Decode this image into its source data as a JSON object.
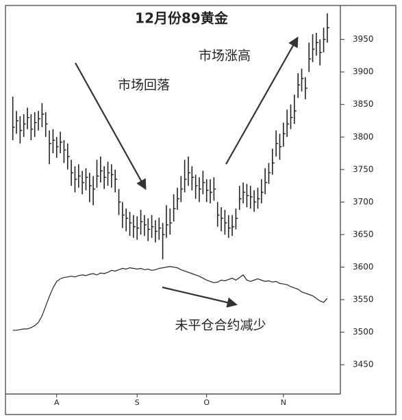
{
  "chart_data": {
    "type": "ohlc",
    "title": "12月份89黄金",
    "annotations": [
      "市场回落",
      "市场涨高",
      "未平仓合约减少"
    ],
    "categories": [
      null,
      null,
      null,
      null,
      null,
      null,
      null,
      null,
      null,
      null,
      null,
      null,
      "A",
      null,
      null,
      null,
      null,
      null,
      null,
      null,
      null,
      null,
      null,
      null,
      null,
      null,
      null,
      null,
      null,
      null,
      null,
      null,
      null,
      null,
      "S",
      null,
      null,
      null,
      null,
      null,
      null,
      null,
      null,
      null,
      null,
      null,
      null,
      null,
      null,
      null,
      null,
      null,
      null,
      "O",
      null,
      null,
      null,
      null,
      null,
      null,
      null,
      null,
      null,
      null,
      null,
      null,
      null,
      null,
      null,
      null,
      null,
      null,
      null,
      null,
      "N",
      null,
      null,
      null,
      null,
      null,
      null,
      null,
      null,
      null,
      null,
      null,
      null
    ],
    "high": [
      3862,
      3840,
      3832,
      3835,
      3845,
      3835,
      3838,
      3840,
      3852,
      3838,
      3810,
      3812,
      3800,
      3808,
      3795,
      3790,
      3765,
      3755,
      3758,
      3748,
      3752,
      3745,
      3740,
      3765,
      3770,
      3755,
      3762,
      3758,
      3750,
      3720,
      3700,
      3690,
      3685,
      3680,
      3678,
      3688,
      3680,
      3675,
      3680,
      3672,
      3676,
      3668,
      3695,
      3690,
      3712,
      3722,
      3740,
      3765,
      3770,
      3755,
      3742,
      3738,
      3748,
      3735,
      3735,
      3738,
      3700,
      3692,
      3688,
      3680,
      3680,
      3690,
      3725,
      3730,
      3728,
      3725,
      3718,
      3722,
      3735,
      3752,
      3760,
      3782,
      3810,
      3805,
      3822,
      3842,
      3850,
      3865,
      3898,
      3905,
      3892,
      3945,
      3958,
      3960,
      3950,
      3968,
      3990
    ],
    "low": [
      3795,
      3805,
      3790,
      3800,
      3812,
      3795,
      3800,
      3810,
      3815,
      3800,
      3758,
      3775,
      3768,
      3775,
      3760,
      3750,
      3725,
      3715,
      3722,
      3712,
      3718,
      3700,
      3695,
      3722,
      3730,
      3720,
      3725,
      3722,
      3715,
      3680,
      3660,
      3655,
      3648,
      3645,
      3642,
      3650,
      3648,
      3640,
      3645,
      3638,
      3642,
      3612,
      3645,
      3650,
      3670,
      3688,
      3700,
      3715,
      3725,
      3718,
      3705,
      3700,
      3712,
      3700,
      3698,
      3702,
      3662,
      3655,
      3650,
      3645,
      3648,
      3658,
      3688,
      3698,
      3692,
      3690,
      3685,
      3690,
      3698,
      3712,
      3728,
      3742,
      3770,
      3765,
      3785,
      3800,
      3812,
      3820,
      3860,
      3870,
      3858,
      3900,
      3915,
      3925,
      3910,
      3930,
      3945
    ],
    "close": [
      3815,
      3825,
      3810,
      3820,
      3830,
      3812,
      3822,
      3828,
      3835,
      3820,
      3790,
      3795,
      3785,
      3792,
      3780,
      3770,
      3745,
      3735,
      3740,
      3730,
      3738,
      3725,
      3720,
      3740,
      3748,
      3738,
      3745,
      3742,
      3735,
      3700,
      3680,
      3675,
      3668,
      3662,
      3660,
      3670,
      3665,
      3658,
      3662,
      3655,
      3660,
      3650,
      3665,
      3668,
      3690,
      3705,
      3720,
      3735,
      3745,
      3738,
      3725,
      3720,
      3730,
      3718,
      3715,
      3720,
      3680,
      3675,
      3668,
      3660,
      3662,
      3675,
      3705,
      3715,
      3710,
      3708,
      3700,
      3705,
      3715,
      3730,
      3745,
      3760,
      3790,
      3785,
      3805,
      3820,
      3830,
      3840,
      3880,
      3890,
      3875,
      3920,
      3935,
      3945,
      3930,
      3950,
      3968
    ],
    "open_interest": [
      3503,
      3503,
      3504,
      3505,
      3505,
      3507,
      3510,
      3515,
      3525,
      3540,
      3555,
      3568,
      3578,
      3582,
      3584,
      3585,
      3586,
      3585,
      3587,
      3588,
      3587,
      3589,
      3590,
      3588,
      3591,
      3590,
      3592,
      3595,
      3594,
      3596,
      3598,
      3597,
      3599,
      3598,
      3597,
      3598,
      3596,
      3597,
      3595,
      3596,
      3598,
      3599,
      3600,
      3601,
      3600,
      3599,
      3596,
      3594,
      3592,
      3590,
      3588,
      3586,
      3583,
      3580,
      3578,
      3576,
      3577,
      3580,
      3579,
      3581,
      3583,
      3580,
      3584,
      3588,
      3580,
      3578,
      3580,
      3582,
      3580,
      3578,
      3579,
      3577,
      3578,
      3575,
      3574,
      3573,
      3570,
      3568,
      3566,
      3562,
      3560,
      3558,
      3556,
      3552,
      3548,
      3546,
      3552
    ],
    "ylim": [
      3405,
      4000
    ],
    "yticks": [
      3450,
      3500,
      3550,
      3600,
      3650,
      3700,
      3750,
      3800,
      3850,
      3900,
      3950
    ],
    "color": "#222222"
  }
}
